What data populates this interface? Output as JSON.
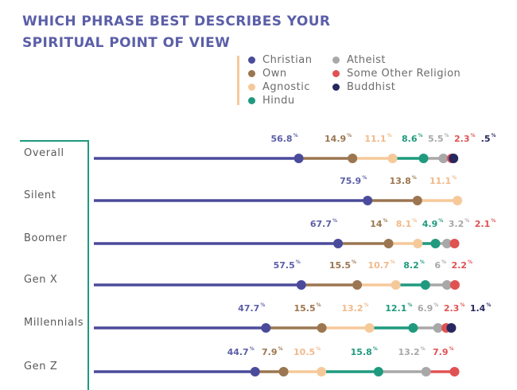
{
  "chart_data": {
    "type": "dot-stacked",
    "title_lines": [
      "WHICH PHRASE BEST DESCRIBES YOUR",
      "SPIRITUAL POINT OF VIEW"
    ],
    "unit": "%",
    "legend": [
      {
        "name": "Christian",
        "color": "#4b4b9b"
      },
      {
        "name": "Own",
        "color": "#9b7650"
      },
      {
        "name": "Agnostic",
        "color": "#f6c99a"
      },
      {
        "name": "Hindu",
        "color": "#1f9a7e"
      },
      {
        "name": "Atheist",
        "color": "#a8a8a8"
      },
      {
        "name": "Some Other Religion",
        "color": "#e05252"
      },
      {
        "name": "Buddhist",
        "color": "#26285e"
      }
    ],
    "label_colors": [
      "#5b5fa8",
      "#9b7650",
      "#f1b98a",
      "#1f9a7e",
      "#a8a8a8",
      "#e05252",
      "#26285e"
    ],
    "categories": [
      "Overall",
      "Silent",
      "Boomer",
      "Gen X",
      "Millennials",
      "Gen Z"
    ],
    "series": [
      {
        "name": "Christian",
        "values": [
          56.8,
          75.9,
          67.7,
          57.5,
          47.7,
          44.7
        ],
        "labels": [
          "56.8",
          "75.9",
          "67.7",
          "57.5",
          "47.7",
          "44.7"
        ]
      },
      {
        "name": "Own",
        "values": [
          14.9,
          13.8,
          14,
          15.5,
          15.5,
          7.9
        ],
        "labels": [
          "14.9",
          "13.8",
          "14",
          "15.5",
          "15.5",
          "7.9"
        ]
      },
      {
        "name": "Agnostic",
        "values": [
          11.1,
          11.1,
          8.1,
          10.7,
          13.2,
          10.5
        ],
        "labels": [
          "11.1",
          "11.1",
          "8.1",
          "10.7",
          "13.2",
          "10.5"
        ]
      },
      {
        "name": "Hindu",
        "values": [
          8.6,
          0,
          4.9,
          8.2,
          12.1,
          15.8
        ],
        "labels": [
          "8.6",
          "",
          "4.9",
          "8.2",
          "12.1",
          "15.8"
        ]
      },
      {
        "name": "Atheist",
        "values": [
          5.5,
          0,
          3.2,
          6,
          6.9,
          13.2
        ],
        "labels": [
          "5.5",
          "",
          "3.2",
          "6",
          "6.9",
          "13.2"
        ]
      },
      {
        "name": "Some Other Religion",
        "values": [
          2.3,
          0,
          2.1,
          2.2,
          2.3,
          7.9
        ],
        "labels": [
          "2.3",
          "",
          "2.1",
          "2.2",
          "2.3",
          "7.9"
        ]
      },
      {
        "name": "Buddhist",
        "values": [
          0.5,
          0,
          0,
          0,
          1.4,
          0
        ],
        "labels": [
          ".5",
          "",
          "",
          "",
          "1.4",
          ""
        ]
      }
    ]
  }
}
